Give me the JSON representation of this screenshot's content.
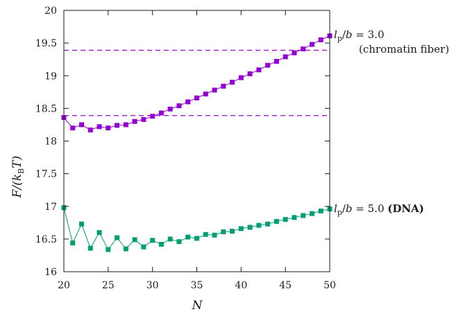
{
  "chart_data": {
    "type": "line",
    "xlabel": "N",
    "ylabel": "F/(k_B T)",
    "xlim": [
      20,
      50
    ],
    "ylim": [
      16,
      20
    ],
    "xticks": [
      "20",
      "25",
      "30",
      "35",
      "40",
      "45",
      "50"
    ],
    "yticks": [
      "16",
      "16.5",
      "17",
      "17.5",
      "18",
      "18.5",
      "19",
      "19.5",
      "20"
    ],
    "x": [
      20,
      21,
      22,
      23,
      24,
      25,
      26,
      27,
      28,
      29,
      30,
      31,
      32,
      33,
      34,
      35,
      36,
      37,
      38,
      39,
      40,
      41,
      42,
      43,
      44,
      45,
      46,
      47,
      48,
      49,
      50
    ],
    "series": [
      {
        "annotation_main": "l_p/b = 3.0",
        "annotation_sub": "(chromatin fiber)",
        "color": "#9400d3",
        "values": [
          18.36,
          18.2,
          18.25,
          18.17,
          18.22,
          18.2,
          18.24,
          18.25,
          18.3,
          18.33,
          18.38,
          18.43,
          18.49,
          18.54,
          18.6,
          18.66,
          18.72,
          18.78,
          18.84,
          18.9,
          18.97,
          19.03,
          19.09,
          19.16,
          19.22,
          19.29,
          19.35,
          19.41,
          19.48,
          19.55,
          19.61
        ]
      },
      {
        "annotation_main": "l_p/b = 5.0 (DNA)",
        "annotation_sub": "",
        "color": "#009e73",
        "values": [
          16.98,
          16.44,
          16.73,
          16.36,
          16.6,
          16.34,
          16.52,
          16.35,
          16.49,
          16.38,
          16.48,
          16.42,
          16.5,
          16.46,
          16.53,
          16.51,
          16.57,
          16.56,
          16.61,
          16.62,
          16.66,
          16.68,
          16.71,
          16.73,
          16.77,
          16.8,
          16.83,
          16.86,
          16.89,
          16.93,
          16.96
        ]
      }
    ],
    "reference_lines": [
      {
        "y": 19.39,
        "color": "#9400d3",
        "style": "dashed"
      },
      {
        "y": 18.39,
        "color": "#9400d3",
        "style": "dashed"
      }
    ],
    "grid": false
  }
}
